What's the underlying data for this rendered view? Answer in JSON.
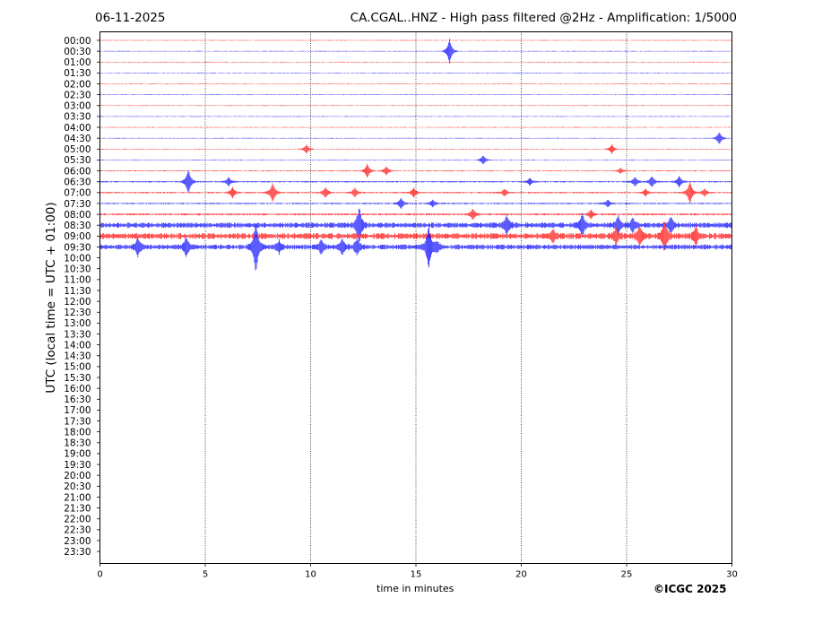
{
  "header": {
    "date": "06-11-2025",
    "title": "CA.CGAL..HNZ - High pass filtered @2Hz - Amplification: 1/5000"
  },
  "footer": {
    "credit": "©ICGC 2025"
  },
  "chart_data": {
    "type": "line",
    "title": "CA.CGAL..HNZ - High pass filtered @2Hz - Amplification: 1/5000",
    "xlabel": "time in minutes",
    "ylabel": "UTC (local time = UTC + 01:00)",
    "xlim": [
      0,
      30
    ],
    "xticks": [
      0,
      5,
      10,
      15,
      20,
      25,
      30
    ],
    "vertical_gridlines": [
      5,
      10,
      15,
      20,
      25
    ],
    "row_labels": [
      "00:00",
      "00:30",
      "01:00",
      "01:30",
      "02:00",
      "02:30",
      "03:00",
      "03:30",
      "04:00",
      "04:30",
      "05:00",
      "05:30",
      "06:00",
      "06:30",
      "07:00",
      "07:30",
      "08:00",
      "08:30",
      "09:00",
      "09:30",
      "10:00",
      "10:30",
      "11:00",
      "11:30",
      "12:00",
      "12:30",
      "13:00",
      "13:30",
      "14:00",
      "14:30",
      "15:00",
      "15:30",
      "16:00",
      "16:30",
      "17:00",
      "17:30",
      "18:00",
      "18:30",
      "19:00",
      "19:30",
      "20:00",
      "20:30",
      "21:00",
      "21:30",
      "22:00",
      "22:30",
      "23:00",
      "23:30"
    ],
    "colors": {
      "even_rows": "#ff0000",
      "odd_rows": "#0000ff"
    },
    "rows_with_data": 20,
    "noise_level": [
      0.3,
      0.3,
      0.3,
      0.3,
      0.3,
      0.3,
      0.3,
      0.3,
      0.3,
      0.3,
      0.3,
      0.3,
      0.4,
      0.6,
      0.6,
      0.6,
      0.8,
      2.2,
      2.4,
      2.0
    ],
    "events": [
      {
        "row": 1,
        "minute": 16.6,
        "amplitude": 14
      },
      {
        "row": 10,
        "minute": 9.8,
        "amplitude": 5
      },
      {
        "row": 10,
        "minute": 24.3,
        "amplitude": 5
      },
      {
        "row": 9,
        "minute": 29.4,
        "amplitude": 7
      },
      {
        "row": 11,
        "minute": 18.2,
        "amplitude": 5
      },
      {
        "row": 12,
        "minute": 12.7,
        "amplitude": 8
      },
      {
        "row": 12,
        "minute": 13.6,
        "amplitude": 5
      },
      {
        "row": 12,
        "minute": 24.7,
        "amplitude": 3
      },
      {
        "row": 13,
        "minute": 4.2,
        "amplitude": 14
      },
      {
        "row": 13,
        "minute": 6.1,
        "amplitude": 5
      },
      {
        "row": 13,
        "minute": 20.4,
        "amplitude": 4
      },
      {
        "row": 13,
        "minute": 25.4,
        "amplitude": 5
      },
      {
        "row": 13,
        "minute": 26.2,
        "amplitude": 6
      },
      {
        "row": 13,
        "minute": 27.5,
        "amplitude": 6
      },
      {
        "row": 14,
        "minute": 6.3,
        "amplitude": 6
      },
      {
        "row": 14,
        "minute": 8.2,
        "amplitude": 11
      },
      {
        "row": 14,
        "minute": 10.7,
        "amplitude": 6
      },
      {
        "row": 14,
        "minute": 12.1,
        "amplitude": 5
      },
      {
        "row": 14,
        "minute": 14.9,
        "amplitude": 5
      },
      {
        "row": 14,
        "minute": 19.2,
        "amplitude": 4
      },
      {
        "row": 14,
        "minute": 25.9,
        "amplitude": 4
      },
      {
        "row": 14,
        "minute": 28.0,
        "amplitude": 13
      },
      {
        "row": 14,
        "minute": 28.7,
        "amplitude": 4
      },
      {
        "row": 15,
        "minute": 14.3,
        "amplitude": 6
      },
      {
        "row": 15,
        "minute": 15.8,
        "amplitude": 4
      },
      {
        "row": 15,
        "minute": 24.1,
        "amplitude": 4
      },
      {
        "row": 16,
        "minute": 17.7,
        "amplitude": 6
      },
      {
        "row": 16,
        "minute": 23.3,
        "amplitude": 5
      },
      {
        "row": 17,
        "minute": 12.3,
        "amplitude": 20
      },
      {
        "row": 17,
        "minute": 19.3,
        "amplitude": 10
      },
      {
        "row": 17,
        "minute": 22.9,
        "amplitude": 12
      },
      {
        "row": 17,
        "minute": 24.6,
        "amplitude": 10
      },
      {
        "row": 17,
        "minute": 25.3,
        "amplitude": 7
      },
      {
        "row": 17,
        "minute": 27.1,
        "amplitude": 8
      },
      {
        "row": 18,
        "minute": 21.5,
        "amplitude": 7
      },
      {
        "row": 18,
        "minute": 24.5,
        "amplitude": 8
      },
      {
        "row": 18,
        "minute": 25.6,
        "amplitude": 10
      },
      {
        "row": 18,
        "minute": 26.8,
        "amplitude": 18
      },
      {
        "row": 18,
        "minute": 28.3,
        "amplitude": 10
      },
      {
        "row": 19,
        "minute": 1.8,
        "amplitude": 9
      },
      {
        "row": 19,
        "minute": 4.1,
        "amplitude": 10
      },
      {
        "row": 19,
        "minute": 7.4,
        "amplitude": 30
      },
      {
        "row": 19,
        "minute": 8.5,
        "amplitude": 7
      },
      {
        "row": 19,
        "minute": 10.5,
        "amplitude": 7
      },
      {
        "row": 19,
        "minute": 11.5,
        "amplitude": 8
      },
      {
        "row": 19,
        "minute": 12.2,
        "amplitude": 9
      },
      {
        "row": 19,
        "minute": 15.6,
        "amplitude": 25
      },
      {
        "row": 19,
        "minute": 16.0,
        "amplitude": 6
      }
    ]
  }
}
